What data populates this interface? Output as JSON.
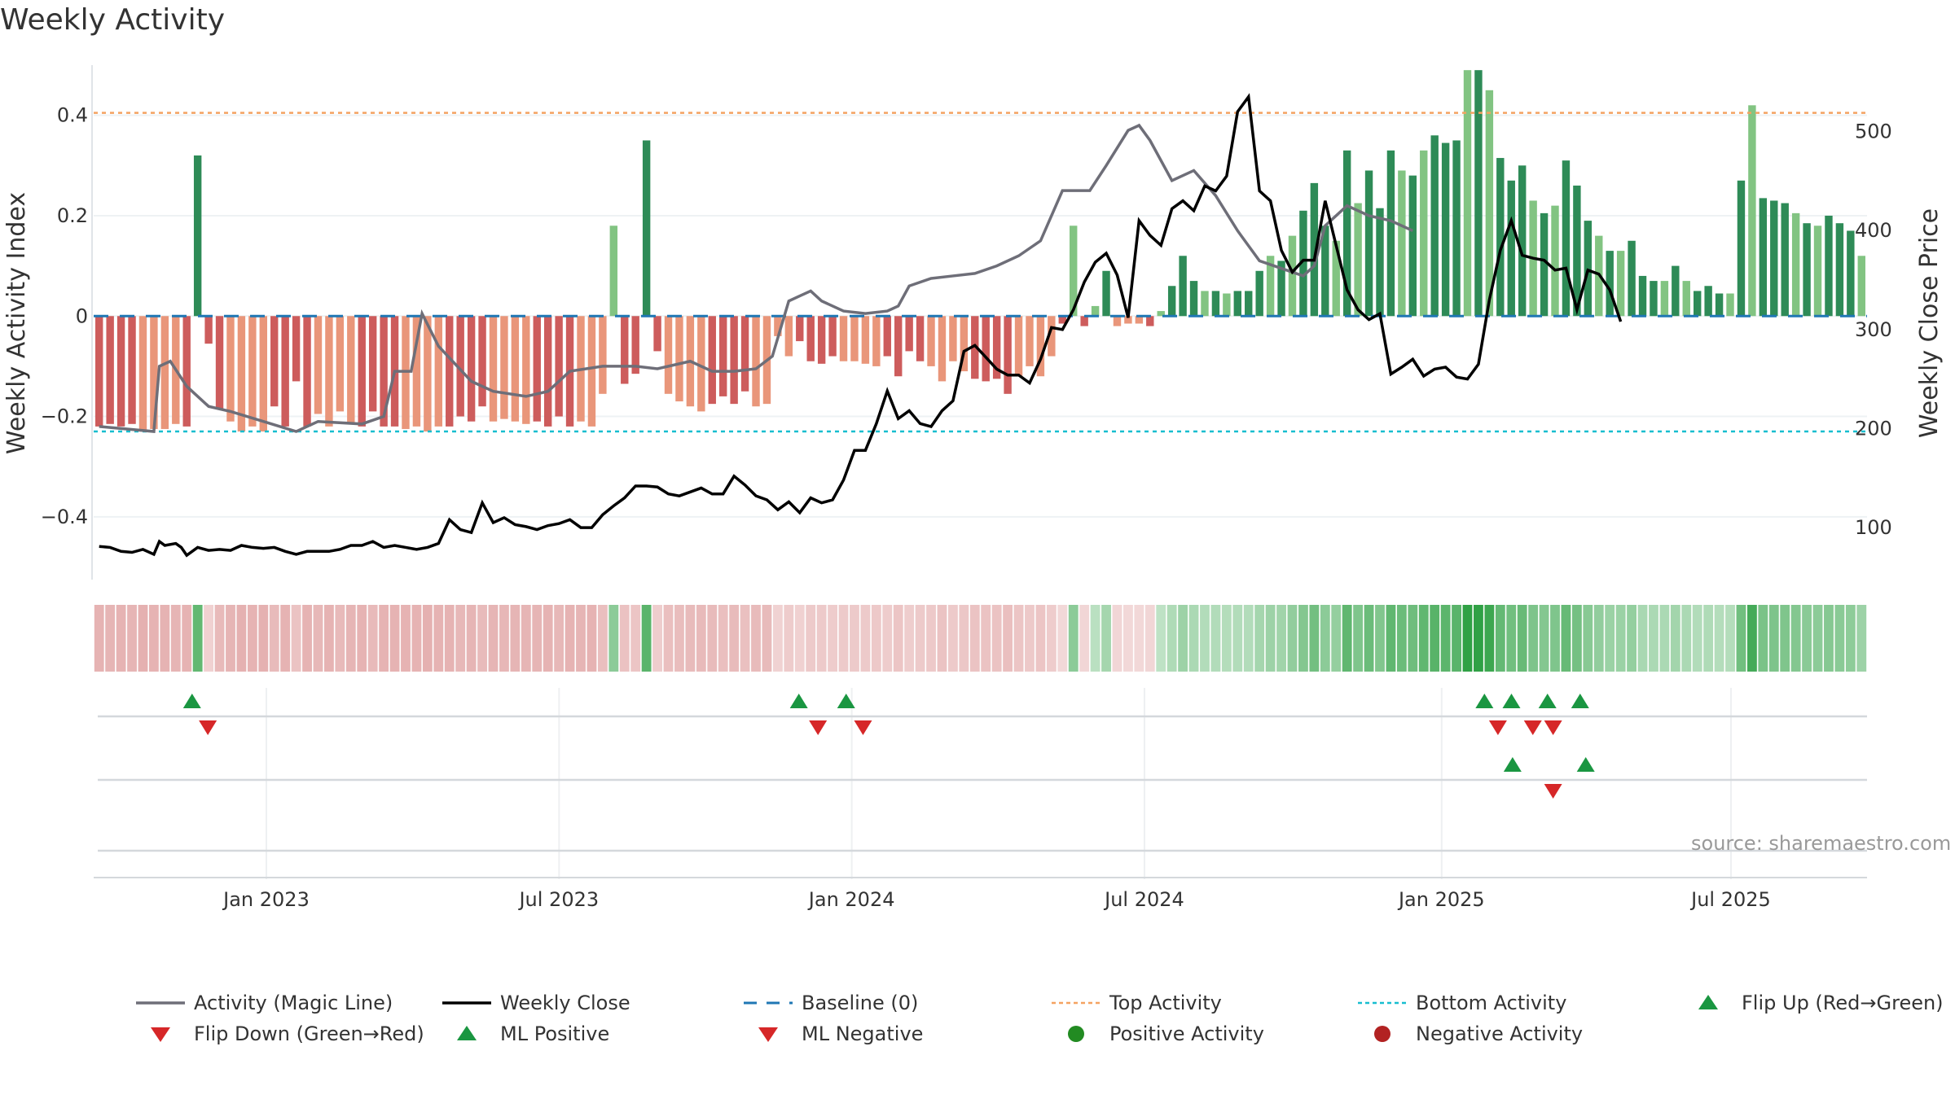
{
  "title": "Weekly Activity",
  "source": "source: sharemaestro.com",
  "colors": {
    "dark_green": "#2e8b57",
    "light_green": "#82c482",
    "dark_red": "#cd5c5c",
    "light_red": "#e9967a",
    "magic_line": "#6e6e78",
    "close_line": "#000000",
    "baseline": "#1f77b4",
    "top": "#f4a261",
    "bottom": "#17becf",
    "flip_up": "#1a9641",
    "flip_down": "#d62728",
    "pos_dot": "#228b22",
    "neg_dot": "#b22222"
  },
  "chart_data": {
    "type": "bar+line",
    "title": "Weekly Activity",
    "ylabel_left": "Weekly Activity Index",
    "ylabel_right": "Weekly Close Price",
    "ylim_left": [
      -0.53,
      0.5
    ],
    "ylim_right": [
      45,
      567
    ],
    "yticks_left": [
      {
        "v": 0.4,
        "label": "0.4"
      },
      {
        "v": 0.2,
        "label": "0.2"
      },
      {
        "v": 0,
        "label": "0"
      },
      {
        "v": -0.2,
        "label": "−0.2"
      },
      {
        "v": -0.4,
        "label": "−0.4"
      }
    ],
    "yticks_right": [
      {
        "v": 500,
        "label": "500"
      },
      {
        "v": 400,
        "label": "400"
      },
      {
        "v": 300,
        "label": "300"
      },
      {
        "v": 200,
        "label": "200"
      },
      {
        "v": 100,
        "label": "100"
      }
    ],
    "x_range_weeks": [
      -15,
      142
    ],
    "x_ticks": [
      {
        "week": 0,
        "label": "Jan 2023"
      },
      {
        "week": 26,
        "label": "Jul 2023"
      },
      {
        "week": 52,
        "label": "Jan 2024"
      },
      {
        "week": 78,
        "label": "Jul 2024"
      },
      {
        "week": 104.4,
        "label": "Jan 2025"
      },
      {
        "week": 130.1,
        "label": "Jul 2025"
      }
    ],
    "top_activity": 0.405,
    "bottom_activity": -0.23,
    "baseline": 0,
    "activity": [
      -0.22,
      -0.215,
      -0.22,
      -0.215,
      -0.23,
      -0.225,
      -0.225,
      -0.215,
      -0.22,
      0.32,
      -0.055,
      -0.185,
      -0.21,
      -0.23,
      -0.22,
      -0.23,
      -0.18,
      -0.22,
      -0.13,
      -0.22,
      -0.195,
      -0.22,
      -0.19,
      -0.215,
      -0.22,
      -0.19,
      -0.22,
      -0.22,
      -0.225,
      -0.22,
      -0.23,
      -0.22,
      -0.22,
      -0.2,
      -0.21,
      -0.18,
      -0.21,
      -0.205,
      -0.21,
      -0.215,
      -0.21,
      -0.22,
      -0.2,
      -0.22,
      -0.21,
      -0.22,
      -0.155,
      0.18,
      -0.135,
      -0.115,
      0.35,
      -0.07,
      -0.155,
      -0.17,
      -0.18,
      -0.19,
      -0.175,
      -0.16,
      -0.175,
      -0.15,
      -0.18,
      -0.175,
      -0.04,
      -0.08,
      -0.05,
      -0.09,
      -0.095,
      -0.08,
      -0.09,
      -0.09,
      -0.095,
      -0.1,
      -0.08,
      -0.12,
      -0.07,
      -0.09,
      -0.1,
      -0.13,
      -0.09,
      -0.11,
      -0.125,
      -0.13,
      -0.125,
      -0.155,
      -0.12,
      -0.1,
      -0.12,
      -0.08,
      -0.015,
      0.18,
      -0.02,
      0.02,
      0.09,
      -0.02,
      -0.015,
      -0.015,
      -0.02,
      0.01,
      0.06,
      0.12,
      0.07,
      0.05,
      0.05,
      0.045,
      0.05,
      0.05,
      0.09,
      0.12,
      0.11,
      0.16,
      0.21,
      0.265,
      0.18,
      0.15,
      0.33,
      0.225,
      0.29,
      0.215,
      0.33,
      0.29,
      0.28,
      0.33,
      0.36,
      0.345,
      0.35,
      0.49,
      0.49,
      0.45,
      0.315,
      0.27,
      0.3,
      0.23,
      0.205,
      0.22,
      0.31,
      0.26,
      0.19,
      0.16,
      0.13,
      0.13,
      0.15,
      0.08,
      0.07,
      0.07,
      0.1,
      0.07,
      0.05,
      0.06,
      0.045,
      0.045,
      0.27,
      0.42,
      0.235,
      0.23,
      0.225,
      0.205,
      0.185,
      0.18,
      0.2,
      0.185,
      0.17,
      0.12
    ],
    "magic_line": [
      [
        0,
        -0.22
      ],
      [
        10,
        -0.23
      ],
      [
        11,
        -0.1
      ],
      [
        13,
        -0.09
      ],
      [
        16,
        -0.14
      ],
      [
        20,
        -0.18
      ],
      [
        24,
        -0.19
      ],
      [
        30,
        -0.21
      ],
      [
        36,
        -0.23
      ],
      [
        40,
        -0.21
      ],
      [
        48,
        -0.215
      ],
      [
        52,
        -0.2
      ],
      [
        54,
        -0.11
      ],
      [
        57,
        -0.11
      ],
      [
        59,
        0.005
      ],
      [
        62,
        -0.06
      ],
      [
        68,
        -0.13
      ],
      [
        72,
        -0.15
      ],
      [
        78,
        -0.16
      ],
      [
        82,
        -0.15
      ],
      [
        86,
        -0.11
      ],
      [
        92,
        -0.1
      ],
      [
        98,
        -0.1
      ],
      [
        102,
        -0.105
      ],
      [
        108,
        -0.09
      ],
      [
        112,
        -0.11
      ],
      [
        116,
        -0.11
      ],
      [
        120,
        -0.105
      ],
      [
        123,
        -0.08
      ],
      [
        126,
        0.03
      ],
      [
        128,
        0.04
      ],
      [
        130,
        0.05
      ],
      [
        132,
        0.03
      ],
      [
        136,
        0.01
      ],
      [
        140,
        0.005
      ],
      [
        144,
        0.01
      ],
      [
        146,
        0.02
      ],
      [
        148,
        0.06
      ],
      [
        152,
        0.075
      ],
      [
        156,
        0.08
      ],
      [
        160,
        0.085
      ],
      [
        164,
        0.1
      ],
      [
        168,
        0.12
      ],
      [
        172,
        0.15
      ],
      [
        176,
        0.25
      ],
      [
        178,
        0.25
      ],
      [
        181,
        0.25
      ],
      [
        184,
        0.3
      ],
      [
        188,
        0.37
      ],
      [
        190,
        0.38
      ],
      [
        192,
        0.35
      ],
      [
        196,
        0.27
      ],
      [
        200,
        0.29
      ],
      [
        204,
        0.24
      ],
      [
        208,
        0.17
      ],
      [
        212,
        0.11
      ],
      [
        216,
        0.095
      ],
      [
        220,
        0.08
      ],
      [
        222,
        0.1
      ],
      [
        224,
        0.18
      ],
      [
        228,
        0.22
      ],
      [
        232,
        0.2
      ],
      [
        236,
        0.19
      ],
      [
        240,
        0.17
      ]
    ],
    "weekly_close": [
      [
        0,
        81
      ],
      [
        2,
        80
      ],
      [
        4,
        76
      ],
      [
        6,
        75
      ],
      [
        8,
        78
      ],
      [
        10,
        73
      ],
      [
        11,
        86
      ],
      [
        12,
        82
      ],
      [
        14,
        84
      ],
      [
        15,
        80
      ],
      [
        16,
        72
      ],
      [
        18,
        80
      ],
      [
        20,
        77
      ],
      [
        22,
        78
      ],
      [
        24,
        77
      ],
      [
        26,
        82
      ],
      [
        28,
        80
      ],
      [
        30,
        79
      ],
      [
        32,
        80
      ],
      [
        34,
        76
      ],
      [
        36,
        73
      ],
      [
        38,
        76
      ],
      [
        40,
        76
      ],
      [
        42,
        76
      ],
      [
        44,
        78
      ],
      [
        46,
        82
      ],
      [
        48,
        82
      ],
      [
        50,
        86
      ],
      [
        52,
        80
      ],
      [
        54,
        82
      ],
      [
        56,
        80
      ],
      [
        58,
        78
      ],
      [
        60,
        80
      ],
      [
        62,
        84
      ],
      [
        64,
        108
      ],
      [
        66,
        98
      ],
      [
        68,
        95
      ],
      [
        70,
        125
      ],
      [
        72,
        105
      ],
      [
        74,
        110
      ],
      [
        76,
        103
      ],
      [
        78,
        101
      ],
      [
        80,
        98
      ],
      [
        82,
        102
      ],
      [
        84,
        104
      ],
      [
        86,
        108
      ],
      [
        88,
        100
      ],
      [
        90,
        100
      ],
      [
        92,
        113
      ],
      [
        94,
        122
      ],
      [
        96,
        130
      ],
      [
        98,
        142
      ],
      [
        100,
        142
      ],
      [
        102,
        141
      ],
      [
        104,
        134
      ],
      [
        106,
        132
      ],
      [
        108,
        136
      ],
      [
        110,
        140
      ],
      [
        112,
        134
      ],
      [
        114,
        134
      ],
      [
        116,
        152
      ],
      [
        118,
        143
      ],
      [
        120,
        132
      ],
      [
        122,
        128
      ],
      [
        124,
        118
      ],
      [
        126,
        126
      ],
      [
        128,
        115
      ],
      [
        130,
        130
      ],
      [
        132,
        125
      ],
      [
        134,
        128
      ],
      [
        136,
        148
      ],
      [
        138,
        178
      ],
      [
        140,
        178
      ],
      [
        142,
        205
      ],
      [
        144,
        238
      ],
      [
        146,
        210
      ],
      [
        148,
        218
      ],
      [
        150,
        205
      ],
      [
        152,
        202
      ],
      [
        154,
        218
      ],
      [
        156,
        228
      ],
      [
        158,
        278
      ],
      [
        160,
        284
      ],
      [
        162,
        272
      ],
      [
        164,
        260
      ],
      [
        166,
        254
      ],
      [
        168,
        254
      ],
      [
        170,
        246
      ],
      [
        172,
        270
      ],
      [
        174,
        302
      ],
      [
        176,
        300
      ],
      [
        178,
        320
      ],
      [
        180,
        348
      ],
      [
        182,
        368
      ],
      [
        184,
        377
      ],
      [
        186,
        355
      ],
      [
        188,
        312
      ],
      [
        190,
        410
      ],
      [
        192,
        395
      ],
      [
        194,
        385
      ],
      [
        196,
        422
      ],
      [
        198,
        430
      ],
      [
        200,
        420
      ],
      [
        202,
        445
      ],
      [
        204,
        440
      ],
      [
        206,
        455
      ],
      [
        208,
        520
      ],
      [
        210,
        535
      ],
      [
        212,
        440
      ],
      [
        214,
        430
      ],
      [
        216,
        380
      ],
      [
        218,
        358
      ],
      [
        220,
        370
      ],
      [
        222,
        370
      ],
      [
        224,
        430
      ],
      [
        226,
        385
      ],
      [
        228,
        340
      ],
      [
        230,
        320
      ],
      [
        232,
        310
      ],
      [
        234,
        316
      ],
      [
        236,
        255
      ],
      [
        238,
        262
      ],
      [
        240,
        270
      ],
      [
        242,
        253
      ],
      [
        244,
        260
      ],
      [
        246,
        262
      ],
      [
        248,
        252
      ],
      [
        250,
        250
      ],
      [
        252,
        265
      ],
      [
        254,
        330
      ],
      [
        256,
        380
      ],
      [
        258,
        410
      ],
      [
        260,
        375
      ],
      [
        262,
        372
      ],
      [
        264,
        370
      ],
      [
        266,
        360
      ],
      [
        268,
        362
      ],
      [
        270,
        320
      ],
      [
        272,
        360
      ],
      [
        274,
        356
      ],
      [
        276,
        340
      ],
      [
        278,
        308
      ]
    ],
    "strip_intensity": "derived-from-activity",
    "flip_up_weeks": [
      -6.6,
      47.3,
      51.5,
      108.2,
      110.6,
      113.8,
      116.7
    ],
    "flip_down_weeks": [
      -5.2,
      49,
      53,
      109.4,
      112.5,
      114.3
    ],
    "ml_positive_weeks": [
      110.7,
      117.2
    ],
    "ml_negative_weeks": [
      114.3
    ],
    "legend": [
      {
        "key": "magic",
        "label": "Activity (Magic Line)"
      },
      {
        "key": "close",
        "label": "Weekly Close"
      },
      {
        "key": "baseline",
        "label": "Baseline (0)"
      },
      {
        "key": "top",
        "label": "Top Activity"
      },
      {
        "key": "bottom",
        "label": "Bottom Activity"
      },
      {
        "key": "flipup",
        "label": "Flip Up (Red→Green)"
      },
      {
        "key": "flipdown",
        "label": "Flip Down (Green→Red)"
      },
      {
        "key": "mlpos",
        "label": "ML Positive"
      },
      {
        "key": "mlneg",
        "label": "ML Negative"
      },
      {
        "key": "posact",
        "label": "Positive Activity"
      },
      {
        "key": "negact",
        "label": "Negative Activity"
      }
    ]
  }
}
